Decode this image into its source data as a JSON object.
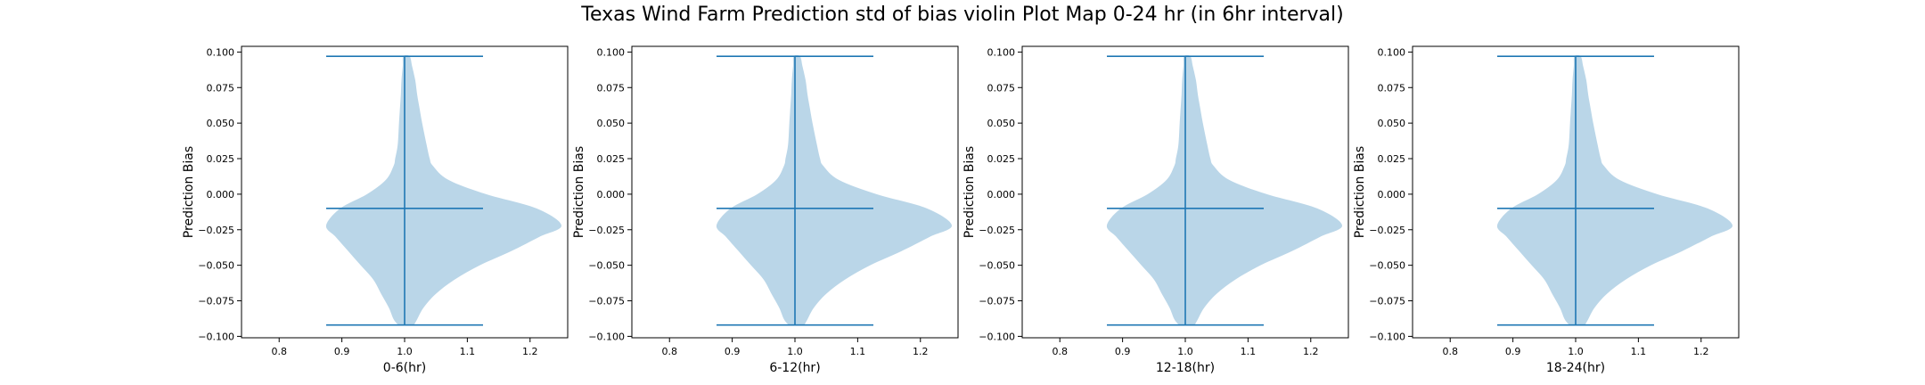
{
  "figure": {
    "title": "Texas Wind Farm Prediction std of bias violin Plot Map 0-24 hr (in 6hr interval)"
  },
  "chart_data": [
    {
      "type": "violin",
      "xlabel": "0-6(hr)",
      "ylabel": "Prediction Bias",
      "xlim": [
        0.74,
        1.26
      ],
      "ylim": [
        -0.101,
        0.104
      ],
      "xticks": [
        0.8,
        0.9,
        1.0,
        1.1,
        1.2
      ],
      "xtick_labels": [
        "0.8",
        "0.9",
        "1.0",
        "1.1",
        "1.2"
      ],
      "yticks": [
        -0.1,
        -0.075,
        -0.05,
        -0.025,
        0.0,
        0.025,
        0.05,
        0.075,
        0.1
      ],
      "ytick_labels": [
        "−0.100",
        "−0.075",
        "−0.050",
        "−0.025",
        "0.000",
        "0.025",
        "0.050",
        "0.075",
        "0.100"
      ],
      "position": 1.0,
      "min": -0.092,
      "max": 0.097,
      "mean": -0.01,
      "density_y": [
        -0.092,
        -0.088,
        -0.08,
        -0.07,
        -0.06,
        -0.05,
        -0.04,
        -0.03,
        -0.022,
        -0.01,
        0.0,
        0.01,
        0.02,
        0.025,
        0.035,
        0.05,
        0.06,
        0.07,
        0.08,
        0.09,
        0.097
      ],
      "density_left": [
        0.02,
        0.035,
        0.05,
        0.075,
        0.1,
        0.14,
        0.18,
        0.22,
        0.25,
        0.205,
        0.12,
        0.06,
        0.035,
        0.03,
        0.022,
        0.018,
        0.015,
        0.012,
        0.01,
        0.006,
        0.004
      ],
      "density_right": [
        0.015,
        0.02,
        0.03,
        0.05,
        0.08,
        0.12,
        0.17,
        0.215,
        0.25,
        0.21,
        0.13,
        0.07,
        0.045,
        0.04,
        0.035,
        0.028,
        0.024,
        0.02,
        0.017,
        0.012,
        0.008
      ],
      "body_color": "#bad6e8",
      "line_color": "#1f77b4"
    },
    {
      "type": "violin",
      "xlabel": "6-12(hr)",
      "ylabel": "Prediction Bias",
      "xlim": [
        0.74,
        1.26
      ],
      "ylim": [
        -0.101,
        0.104
      ],
      "xticks": [
        0.8,
        0.9,
        1.0,
        1.1,
        1.2
      ],
      "xtick_labels": [
        "0.8",
        "0.9",
        "1.0",
        "1.1",
        "1.2"
      ],
      "yticks": [
        -0.1,
        -0.075,
        -0.05,
        -0.025,
        0.0,
        0.025,
        0.05,
        0.075,
        0.1
      ],
      "ytick_labels": [
        "−0.100",
        "−0.075",
        "−0.050",
        "−0.025",
        "0.000",
        "0.025",
        "0.050",
        "0.075",
        "0.100"
      ],
      "position": 1.0,
      "min": -0.092,
      "max": 0.097,
      "mean": -0.01,
      "density_y": [
        -0.092,
        -0.088,
        -0.08,
        -0.07,
        -0.06,
        -0.05,
        -0.04,
        -0.03,
        -0.022,
        -0.01,
        0.0,
        0.01,
        0.02,
        0.025,
        0.035,
        0.05,
        0.06,
        0.07,
        0.08,
        0.09,
        0.097
      ],
      "density_left": [
        0.02,
        0.035,
        0.05,
        0.075,
        0.1,
        0.14,
        0.18,
        0.22,
        0.25,
        0.205,
        0.12,
        0.06,
        0.035,
        0.03,
        0.022,
        0.018,
        0.015,
        0.012,
        0.01,
        0.006,
        0.004
      ],
      "density_right": [
        0.015,
        0.02,
        0.03,
        0.05,
        0.08,
        0.12,
        0.17,
        0.215,
        0.25,
        0.21,
        0.13,
        0.07,
        0.045,
        0.04,
        0.035,
        0.028,
        0.024,
        0.02,
        0.017,
        0.012,
        0.008
      ],
      "body_color": "#bad6e8",
      "line_color": "#1f77b4"
    },
    {
      "type": "violin",
      "xlabel": "12-18(hr)",
      "ylabel": "Prediction Bias",
      "xlim": [
        0.74,
        1.26
      ],
      "ylim": [
        -0.101,
        0.104
      ],
      "xticks": [
        0.8,
        0.9,
        1.0,
        1.1,
        1.2
      ],
      "xtick_labels": [
        "0.8",
        "0.9",
        "1.0",
        "1.1",
        "1.2"
      ],
      "yticks": [
        -0.1,
        -0.075,
        -0.05,
        -0.025,
        0.0,
        0.025,
        0.05,
        0.075,
        0.1
      ],
      "ytick_labels": [
        "−0.100",
        "−0.075",
        "−0.050",
        "−0.025",
        "0.000",
        "0.025",
        "0.050",
        "0.075",
        "0.100"
      ],
      "position": 1.0,
      "min": -0.092,
      "max": 0.097,
      "mean": -0.01,
      "density_y": [
        -0.092,
        -0.088,
        -0.08,
        -0.07,
        -0.06,
        -0.05,
        -0.04,
        -0.03,
        -0.022,
        -0.01,
        0.0,
        0.01,
        0.02,
        0.025,
        0.035,
        0.05,
        0.06,
        0.07,
        0.08,
        0.09,
        0.097
      ],
      "density_left": [
        0.02,
        0.035,
        0.05,
        0.075,
        0.1,
        0.14,
        0.18,
        0.22,
        0.25,
        0.205,
        0.12,
        0.06,
        0.035,
        0.03,
        0.022,
        0.018,
        0.015,
        0.012,
        0.01,
        0.006,
        0.004
      ],
      "density_right": [
        0.015,
        0.02,
        0.03,
        0.05,
        0.08,
        0.12,
        0.17,
        0.215,
        0.25,
        0.21,
        0.13,
        0.07,
        0.045,
        0.04,
        0.035,
        0.028,
        0.024,
        0.02,
        0.017,
        0.012,
        0.008
      ],
      "body_color": "#bad6e8",
      "line_color": "#1f77b4"
    },
    {
      "type": "violin",
      "xlabel": "18-24(hr)",
      "ylabel": "Prediction Bias",
      "xlim": [
        0.74,
        1.26
      ],
      "ylim": [
        -0.101,
        0.104
      ],
      "xticks": [
        0.8,
        0.9,
        1.0,
        1.1,
        1.2
      ],
      "xtick_labels": [
        "0.8",
        "0.9",
        "1.0",
        "1.1",
        "1.2"
      ],
      "yticks": [
        -0.1,
        -0.075,
        -0.05,
        -0.025,
        0.0,
        0.025,
        0.05,
        0.075,
        0.1
      ],
      "ytick_labels": [
        "−0.100",
        "−0.075",
        "−0.050",
        "−0.025",
        "0.000",
        "0.025",
        "0.050",
        "0.075",
        "0.100"
      ],
      "position": 1.0,
      "min": -0.092,
      "max": 0.097,
      "mean": -0.01,
      "density_y": [
        -0.092,
        -0.088,
        -0.08,
        -0.07,
        -0.06,
        -0.05,
        -0.04,
        -0.03,
        -0.022,
        -0.01,
        0.0,
        0.01,
        0.02,
        0.025,
        0.035,
        0.05,
        0.06,
        0.07,
        0.08,
        0.09,
        0.097
      ],
      "density_left": [
        0.02,
        0.035,
        0.05,
        0.075,
        0.1,
        0.14,
        0.18,
        0.22,
        0.25,
        0.205,
        0.12,
        0.06,
        0.035,
        0.03,
        0.022,
        0.018,
        0.015,
        0.012,
        0.01,
        0.006,
        0.004
      ],
      "density_right": [
        0.015,
        0.02,
        0.03,
        0.05,
        0.08,
        0.12,
        0.17,
        0.215,
        0.25,
        0.21,
        0.13,
        0.07,
        0.045,
        0.04,
        0.035,
        0.028,
        0.024,
        0.02,
        0.017,
        0.012,
        0.008
      ],
      "body_color": "#bad6e8",
      "line_color": "#1f77b4"
    }
  ]
}
